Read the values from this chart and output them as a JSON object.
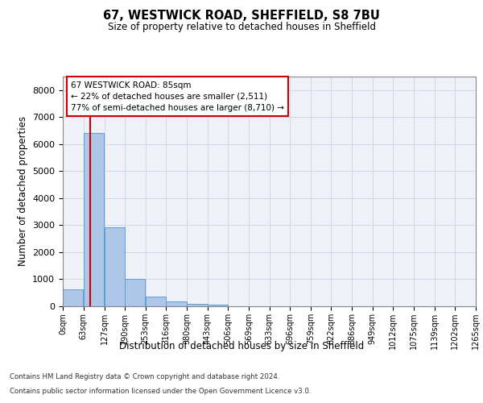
{
  "title": "67, WESTWICK ROAD, SHEFFIELD, S8 7BU",
  "subtitle": "Size of property relative to detached houses in Sheffield",
  "xlabel": "Distribution of detached houses by size in Sheffield",
  "ylabel": "Number of detached properties",
  "bar_color": "#aec6e8",
  "bar_edge_color": "#5a9fd4",
  "grid_color": "#d0d8e8",
  "background_color": "#eef2f8",
  "property_line_color": "#cc0000",
  "property_size": 85,
  "annotation_text": "67 WESTWICK ROAD: 85sqm\n← 22% of detached houses are smaller (2,511)\n77% of semi-detached houses are larger (8,710) →",
  "bin_edges": [
    0,
    63,
    127,
    190,
    253,
    316,
    380,
    443,
    506,
    569,
    633,
    696,
    759,
    822,
    886,
    949,
    1012,
    1075,
    1139,
    1202,
    1265
  ],
  "bin_labels": [
    "0sqm",
    "63sqm",
    "127sqm",
    "190sqm",
    "253sqm",
    "316sqm",
    "380sqm",
    "443sqm",
    "506sqm",
    "569sqm",
    "633sqm",
    "696sqm",
    "759sqm",
    "822sqm",
    "886sqm",
    "949sqm",
    "1012sqm",
    "1075sqm",
    "1139sqm",
    "1202sqm",
    "1265sqm"
  ],
  "counts": [
    620,
    6420,
    2920,
    1000,
    370,
    175,
    90,
    60,
    0,
    0,
    0,
    0,
    0,
    0,
    0,
    0,
    0,
    0,
    0,
    0
  ],
  "ylim": [
    0,
    8500
  ],
  "yticks": [
    0,
    1000,
    2000,
    3000,
    4000,
    5000,
    6000,
    7000,
    8000
  ],
  "footer_line1": "Contains HM Land Registry data © Crown copyright and database right 2024.",
  "footer_line2": "Contains public sector information licensed under the Open Government Licence v3.0."
}
